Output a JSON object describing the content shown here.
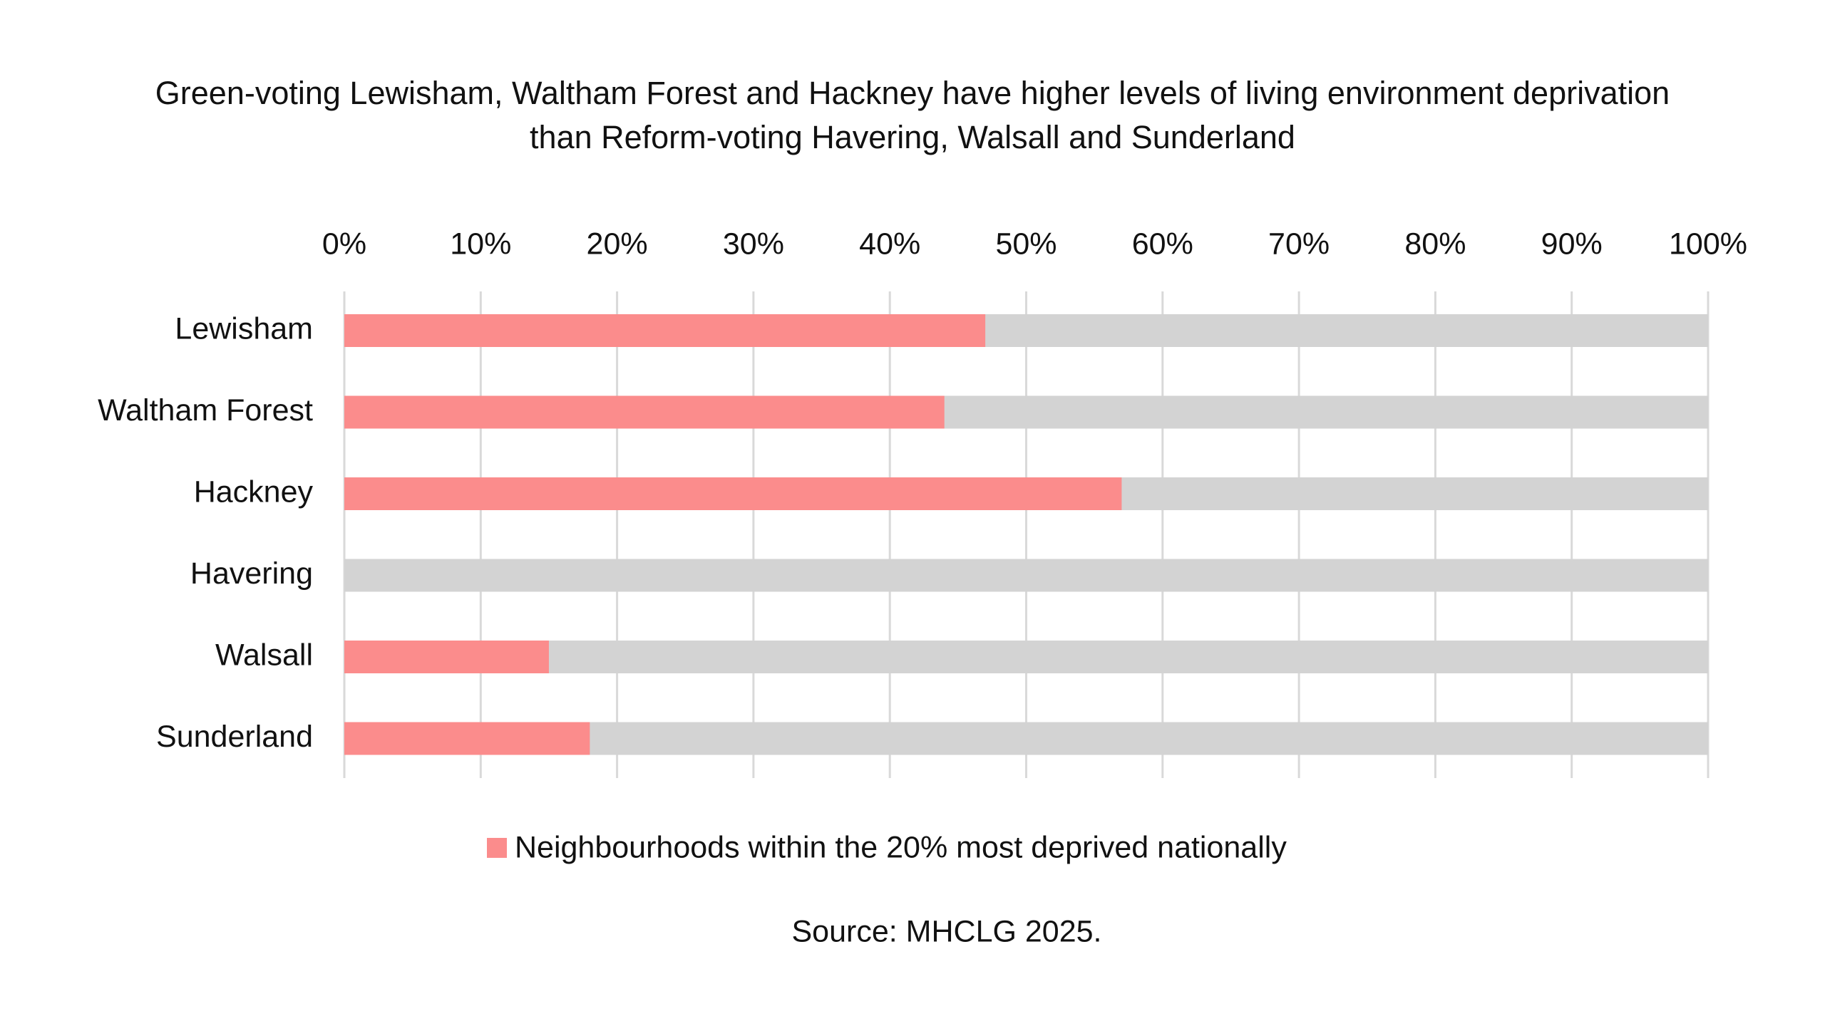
{
  "chart_data": {
    "type": "bar",
    "orientation": "horizontal",
    "title": "Green-voting Lewisham, Waltham Forest and Hackney have higher levels of living environment deprivation than Reform-voting Havering, Walsall and Sunderland",
    "categories": [
      "Lewisham",
      "Waltham Forest",
      "Hackney",
      "Havering",
      "Walsall",
      "Sunderland"
    ],
    "series": [
      {
        "name": "Neighbourhoods within the 20% most deprived nationally",
        "color": "#fb8c8c",
        "values": [
          47,
          44,
          57,
          0,
          15,
          18
        ]
      }
    ],
    "xlim": [
      0,
      100
    ],
    "xticks": [
      {
        "value": 0,
        "label": "0%"
      },
      {
        "value": 10,
        "label": "10%"
      },
      {
        "value": 20,
        "label": "20%"
      },
      {
        "value": 30,
        "label": "30%"
      },
      {
        "value": 40,
        "label": "40%"
      },
      {
        "value": 50,
        "label": "50%"
      },
      {
        "value": 60,
        "label": "60%"
      },
      {
        "value": 70,
        "label": "70%"
      },
      {
        "value": 80,
        "label": "80%"
      },
      {
        "value": 90,
        "label": "90%"
      },
      {
        "value": 100,
        "label": "100%"
      }
    ],
    "grid": true,
    "source": "Source: MHCLG 2025."
  }
}
